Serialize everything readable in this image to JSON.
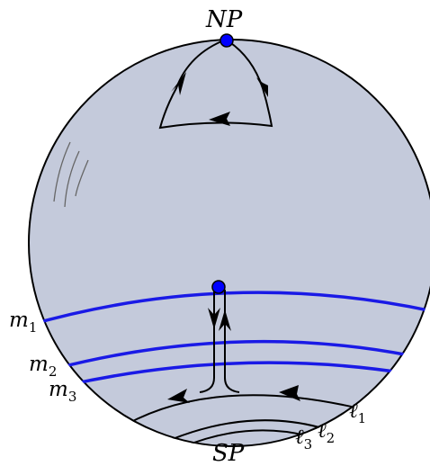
{
  "labels": {
    "north_pole": "NP",
    "south_pole": "SP",
    "m": "m",
    "l": "ℓ",
    "subscripts": {
      "one": "1",
      "two": "2",
      "three": "3"
    }
  },
  "colors": {
    "sphere_fill": "#c4cadb",
    "outline": "#000000",
    "meridian_blue": "#1a1ae6",
    "point_fill": "#0000ff",
    "hatch": "#666666"
  }
}
